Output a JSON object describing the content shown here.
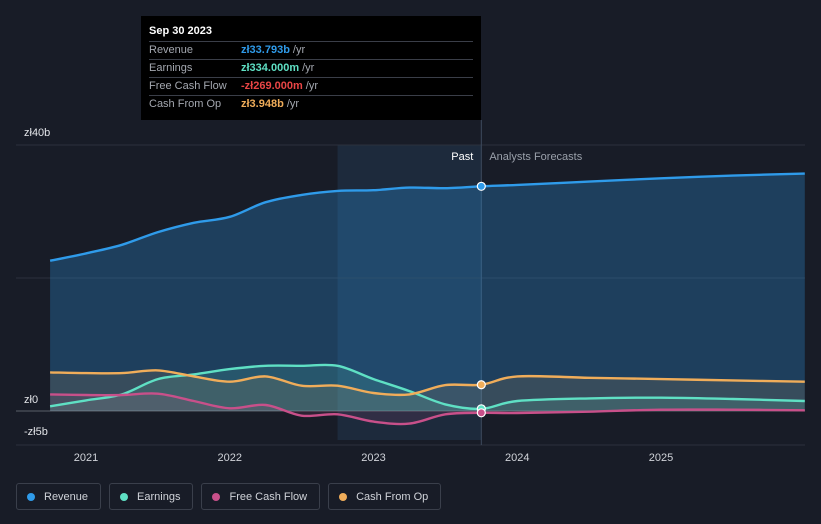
{
  "tooltip": {
    "date": "Sep 30 2023",
    "rows": [
      {
        "label": "Revenue",
        "value": "zł33.793b",
        "unit": "/yr",
        "color": "#2f9bea"
      },
      {
        "label": "Earnings",
        "value": "zł334.000m",
        "unit": "/yr",
        "color": "#5fe0c4"
      },
      {
        "label": "Free Cash Flow",
        "value": "-zł269.000m",
        "unit": "/yr",
        "color": "#e84545"
      },
      {
        "label": "Cash From Op",
        "value": "zł3.948b",
        "unit": "/yr",
        "color": "#f0ad5a"
      }
    ]
  },
  "legend": [
    {
      "label": "Revenue",
      "color": "#2f9bea"
    },
    {
      "label": "Earnings",
      "color": "#5fe0c4"
    },
    {
      "label": "Free Cash Flow",
      "color": "#c8508a"
    },
    {
      "label": "Cash From Op",
      "color": "#f0ad5a"
    }
  ],
  "chart_data": {
    "type": "line",
    "yunit": "zł billions",
    "ylim": [
      -5,
      40
    ],
    "y_tick_labels": [
      {
        "value": 40,
        "label": "zł40b"
      },
      {
        "value": 0,
        "label": "zł0"
      },
      {
        "value": -5,
        "label": "-zł5b"
      }
    ],
    "x_ticks": [
      2021,
      2022,
      2023,
      2024,
      2025
    ],
    "xlim": [
      2020.6,
      2026.0
    ],
    "past_label": "Past",
    "forecast_label": "Analysts Forecasts",
    "divider_x": 2023.75,
    "shade_start_x": 2022.75,
    "series": [
      {
        "name": "Revenue",
        "color": "#2f9bea",
        "points": [
          [
            2020.75,
            22.6
          ],
          [
            2021.0,
            23.7
          ],
          [
            2021.25,
            25.0
          ],
          [
            2021.5,
            26.9
          ],
          [
            2021.75,
            28.3
          ],
          [
            2022.0,
            29.2
          ],
          [
            2022.25,
            31.4
          ],
          [
            2022.5,
            32.5
          ],
          [
            2022.75,
            33.1
          ],
          [
            2023.0,
            33.2
          ],
          [
            2023.25,
            33.6
          ],
          [
            2023.5,
            33.5
          ],
          [
            2023.75,
            33.79
          ],
          [
            2024.0,
            34.0
          ],
          [
            2024.5,
            34.5
          ],
          [
            2025.0,
            35.0
          ],
          [
            2025.5,
            35.4
          ],
          [
            2026.0,
            35.7
          ]
        ]
      },
      {
        "name": "Earnings",
        "color": "#5fe0c4",
        "points": [
          [
            2020.75,
            0.7
          ],
          [
            2021.0,
            1.6
          ],
          [
            2021.25,
            2.5
          ],
          [
            2021.5,
            4.8
          ],
          [
            2021.75,
            5.5
          ],
          [
            2022.0,
            6.3
          ],
          [
            2022.25,
            6.8
          ],
          [
            2022.5,
            6.8
          ],
          [
            2022.75,
            6.8
          ],
          [
            2023.0,
            4.8
          ],
          [
            2023.25,
            3.0
          ],
          [
            2023.5,
            1.0
          ],
          [
            2023.75,
            0.33
          ],
          [
            2024.0,
            1.5
          ],
          [
            2024.5,
            1.9
          ],
          [
            2025.0,
            2.0
          ],
          [
            2025.5,
            1.8
          ],
          [
            2026.0,
            1.5
          ]
        ]
      },
      {
        "name": "Free Cash Flow",
        "color": "#c8508a",
        "points": [
          [
            2020.75,
            2.5
          ],
          [
            2021.0,
            2.4
          ],
          [
            2021.25,
            2.4
          ],
          [
            2021.5,
            2.6
          ],
          [
            2021.75,
            1.5
          ],
          [
            2022.0,
            0.4
          ],
          [
            2022.25,
            0.9
          ],
          [
            2022.5,
            -0.7
          ],
          [
            2022.75,
            -0.5
          ],
          [
            2023.0,
            -1.6
          ],
          [
            2023.25,
            -1.9
          ],
          [
            2023.5,
            -0.5
          ],
          [
            2023.75,
            -0.27
          ],
          [
            2024.0,
            -0.3
          ],
          [
            2024.5,
            -0.1
          ],
          [
            2025.0,
            0.2
          ],
          [
            2025.5,
            0.2
          ],
          [
            2026.0,
            0.1
          ]
        ]
      },
      {
        "name": "Cash From Op",
        "color": "#f0ad5a",
        "points": [
          [
            2020.75,
            5.8
          ],
          [
            2021.0,
            5.7
          ],
          [
            2021.25,
            5.7
          ],
          [
            2021.5,
            6.1
          ],
          [
            2021.75,
            5.2
          ],
          [
            2022.0,
            4.4
          ],
          [
            2022.25,
            5.2
          ],
          [
            2022.5,
            3.8
          ],
          [
            2022.75,
            3.8
          ],
          [
            2023.0,
            2.7
          ],
          [
            2023.25,
            2.5
          ],
          [
            2023.5,
            3.9
          ],
          [
            2023.75,
            3.95
          ],
          [
            2024.0,
            5.2
          ],
          [
            2024.5,
            5.0
          ],
          [
            2025.0,
            4.8
          ],
          [
            2025.5,
            4.6
          ],
          [
            2026.0,
            4.4
          ]
        ]
      }
    ]
  }
}
